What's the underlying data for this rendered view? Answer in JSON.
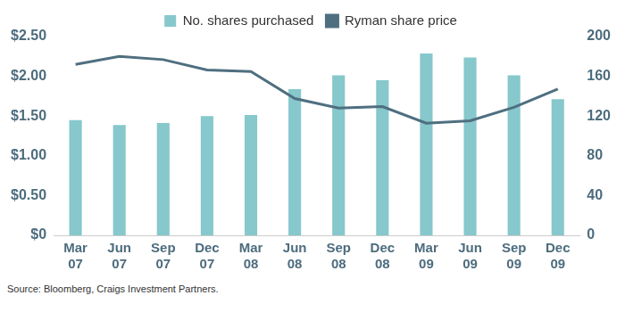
{
  "chart_data": {
    "type": "bar",
    "source": "Source: Bloomberg, Craigs Investment Partners.",
    "categories": [
      "Mar 07",
      "Jun 07",
      "Sep 07",
      "Dec 07",
      "Mar 08",
      "Jun 08",
      "Sep 08",
      "Dec 08",
      "Mar 09",
      "Jun 09",
      "Sep 09",
      "Dec 09"
    ],
    "series": [
      {
        "name": "No. shares purchased",
        "type": "bar",
        "axis": "y2",
        "color": "#86c8cc",
        "values": [
          116,
          111,
          113,
          120,
          121,
          147,
          161,
          156,
          183,
          179,
          161,
          137
        ]
      },
      {
        "name": "Ryman share price",
        "type": "line",
        "axis": "y",
        "color": "#4f6f80",
        "values": [
          2.15,
          2.25,
          2.21,
          2.08,
          2.06,
          1.72,
          1.6,
          1.62,
          1.41,
          1.44,
          1.61,
          1.84
        ]
      }
    ],
    "ylim": [
      0,
      2.5
    ],
    "yticks": [
      {
        "value": 0,
        "label": "$0"
      },
      {
        "value": 0.5,
        "label": "$0.50"
      },
      {
        "value": 1,
        "label": "$1.00"
      },
      {
        "value": 1.5,
        "label": "$1.50"
      },
      {
        "value": 2,
        "label": "$2.00"
      },
      {
        "value": 2.5,
        "label": "$2.50"
      }
    ],
    "y2lim": [
      0,
      200
    ],
    "y2ticks": [
      0,
      40,
      80,
      120,
      160,
      200
    ],
    "grid": false,
    "legend": "top"
  }
}
